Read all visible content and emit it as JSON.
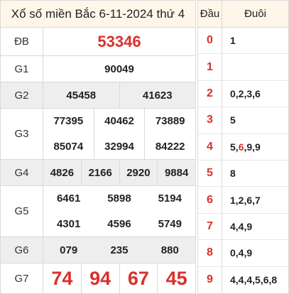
{
  "title": "Xổ số miền Bắc 6-11-2024 thứ 4",
  "prizes": {
    "db": {
      "label": "ĐB",
      "numbers": [
        "53346"
      ]
    },
    "g1": {
      "label": "G1",
      "numbers": [
        "90049"
      ]
    },
    "g2": {
      "label": "G2",
      "numbers": [
        "45458",
        "41623"
      ]
    },
    "g3": {
      "label": "G3",
      "numbers": [
        "77395",
        "40462",
        "73889",
        "85074",
        "32994",
        "84222"
      ]
    },
    "g4": {
      "label": "G4",
      "numbers": [
        "4826",
        "2166",
        "2920",
        "9884"
      ]
    },
    "g5": {
      "label": "G5",
      "numbers": [
        "6461",
        "5898",
        "5194",
        "4301",
        "4596",
        "5749"
      ]
    },
    "g6": {
      "label": "G6",
      "numbers": [
        "079",
        "235",
        "880"
      ]
    },
    "g7": {
      "label": "G7",
      "numbers": [
        "74",
        "94",
        "67",
        "45"
      ]
    }
  },
  "side": {
    "header_head": "Đầu",
    "header_tail": "Đuôi",
    "rows": [
      {
        "head": "0",
        "tails": [
          {
            "t": "1"
          }
        ]
      },
      {
        "head": "1",
        "tails": []
      },
      {
        "head": "2",
        "tails": [
          {
            "t": "0,2,3,6"
          }
        ]
      },
      {
        "head": "3",
        "tails": [
          {
            "t": "5"
          }
        ]
      },
      {
        "head": "4",
        "tails": [
          {
            "t": "5,"
          },
          {
            "t": "6",
            "hl": true
          },
          {
            "t": ",9,9"
          }
        ]
      },
      {
        "head": "5",
        "tails": [
          {
            "t": "8"
          }
        ]
      },
      {
        "head": "6",
        "tails": [
          {
            "t": "1,2,6,7"
          }
        ]
      },
      {
        "head": "7",
        "tails": [
          {
            "t": "4,4,9"
          }
        ]
      },
      {
        "head": "8",
        "tails": [
          {
            "t": "0,4,9"
          }
        ]
      },
      {
        "head": "9",
        "tails": [
          {
            "t": "4,4,4,5,6,8"
          }
        ]
      }
    ]
  },
  "colors": {
    "accent_red": "#d9302c",
    "header_bg": "#fef6e9",
    "shaded_row": "#eeeeee"
  }
}
